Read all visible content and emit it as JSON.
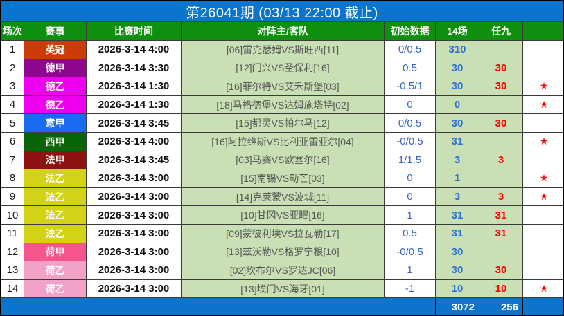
{
  "title": "第26041期 (03/13 22:00 截止)",
  "columns": [
    "场次",
    "赛事",
    "比赛时间",
    "对阵主/客队",
    "初始数据",
    "14场",
    "任九",
    ""
  ],
  "rows": [
    {
      "no": "1",
      "league": "英冠",
      "league_color": "#CC3B0A",
      "time": "2026-3-14 4:00",
      "match": "[06]雷克瑟姆VS斯旺西[11]",
      "initial": "0/0.5",
      "v14": "310",
      "r9": "",
      "star": false
    },
    {
      "no": "2",
      "league": "德甲",
      "league_color": "#8E068E",
      "time": "2026-3-14 3:30",
      "match": "[12]门兴VS圣保利[16]",
      "initial": "0.5",
      "v14": "30",
      "r9": "30",
      "star": false
    },
    {
      "no": "3",
      "league": "德乙",
      "league_color": "#EE00EE",
      "time": "2026-3-14 1:30",
      "match": "[16]菲尔特VS艾禾斯堡[03]",
      "initial": "-0.5/1",
      "v14": "30",
      "r9": "30",
      "star": true
    },
    {
      "no": "4",
      "league": "德乙",
      "league_color": "#EE00EE",
      "time": "2026-3-14 1:30",
      "match": "[18]马格德堡VS达姆施塔特[02]",
      "initial": "0",
      "v14": "0",
      "r9": "",
      "star": true
    },
    {
      "no": "5",
      "league": "意甲",
      "league_color": "#1A6AF2",
      "time": "2026-3-14 3:45",
      "match": "[15]都灵VS帕尔马[12]",
      "initial": "0/0.5",
      "v14": "30",
      "r9": "30",
      "star": false
    },
    {
      "no": "6",
      "league": "西甲",
      "league_color": "#076607",
      "time": "2026-3-14 4:00",
      "match": "[16]阿拉维斯VS比利亚雷亚尔[04]",
      "initial": "-0/0.5",
      "v14": "31",
      "r9": "",
      "star": true
    },
    {
      "no": "7",
      "league": "法甲",
      "league_color": "#8E1212",
      "time": "2026-3-14 3:45",
      "match": "[03]马赛VS欧塞尔[16]",
      "initial": "1/1.5",
      "v14": "3",
      "r9": "3",
      "star": false
    },
    {
      "no": "8",
      "league": "法乙",
      "league_color": "#D2D216",
      "time": "2026-3-14 3:00",
      "match": "[15]南锡VS勒芒[03]",
      "initial": "0",
      "v14": "1",
      "r9": "",
      "star": true
    },
    {
      "no": "9",
      "league": "法乙",
      "league_color": "#D2D216",
      "time": "2026-3-14 3:00",
      "match": "[14]克莱蒙VS波城[11]",
      "initial": "0",
      "v14": "3",
      "r9": "3",
      "star": true
    },
    {
      "no": "10",
      "league": "法乙",
      "league_color": "#D2D216",
      "time": "2026-3-14 3:00",
      "match": "[10]甘冈VS亚眠[16]",
      "initial": "1",
      "v14": "31",
      "r9": "31",
      "star": false
    },
    {
      "no": "11",
      "league": "法乙",
      "league_color": "#D2D216",
      "time": "2026-3-14 3:00",
      "match": "[09]蒙彼利埃VS拉瓦勒[17]",
      "initial": "0.5",
      "v14": "31",
      "r9": "31",
      "star": false
    },
    {
      "no": "12",
      "league": "荷甲",
      "league_color": "#F5548C",
      "time": "2026-3-14 3:00",
      "match": "[13]兹沃勒VS格罗宁根[10]",
      "initial": "-0/0.5",
      "v14": "30",
      "r9": "",
      "star": false
    },
    {
      "no": "13",
      "league": "荷乙",
      "league_color": "#F2A2C8",
      "time": "2026-3-14 3:00",
      "match": "[02]坎布尔VS罗达JC[06]",
      "initial": "1",
      "v14": "30",
      "r9": "30",
      "star": false
    },
    {
      "no": "14",
      "league": "荷乙",
      "league_color": "#F2A2C8",
      "time": "2026-3-14 3:00",
      "match": "[13]埃门VS海牙[01]",
      "initial": "-1",
      "v14": "10",
      "r9": "10",
      "star": true
    }
  ],
  "footer": {
    "total_14": "3072",
    "total_r9": "256"
  },
  "icons": {
    "star_glyph": "★"
  },
  "colors": {
    "title_bar_blue": "#0B74CC",
    "header_green": "#0E8F0E",
    "cell_light_green": "#C8E0B4",
    "value_blue": "#2E6DD2",
    "value_red": "#FF0000",
    "star_red": "#EE1111"
  }
}
